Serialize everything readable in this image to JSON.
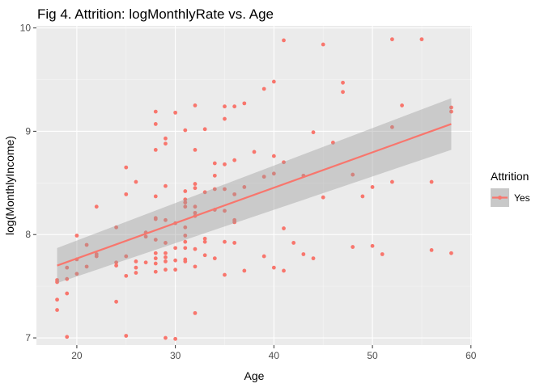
{
  "chart_data": {
    "type": "scatter",
    "title": "Fig 4. Attrition: logMonthlyRate vs. Age",
    "xlabel": "Age",
    "ylabel": "log(MonthlyIncome)",
    "xlim": [
      15.9,
      60.1
    ],
    "ylim": [
      6.93,
      10.02
    ],
    "xticks": [
      20,
      30,
      40,
      50,
      60
    ],
    "yticks": [
      7,
      8,
      9,
      10
    ],
    "grid": true,
    "legend": {
      "title": "Attrition",
      "position": "right",
      "entries": [
        "Yes"
      ]
    },
    "series": [
      {
        "name": "Yes",
        "color": "#F8766D",
        "points": [
          [
            18,
            7.56
          ],
          [
            18,
            7.54
          ],
          [
            18,
            7.37
          ],
          [
            18,
            7.27
          ],
          [
            19,
            7.68
          ],
          [
            19,
            7.43
          ],
          [
            19,
            7.01
          ],
          [
            19,
            7.57
          ],
          [
            20,
            7.99
          ],
          [
            20,
            7.76
          ],
          [
            20,
            7.62
          ],
          [
            21,
            7.9
          ],
          [
            21,
            7.69
          ],
          [
            22,
            8.27
          ],
          [
            22,
            7.81
          ],
          [
            22,
            7.79
          ],
          [
            24,
            8.07
          ],
          [
            24,
            7.73
          ],
          [
            24,
            7.7
          ],
          [
            24,
            7.35
          ],
          [
            25,
            8.65
          ],
          [
            25,
            8.39
          ],
          [
            25,
            7.79
          ],
          [
            25,
            7.6
          ],
          [
            25,
            7.02
          ],
          [
            26,
            8.51
          ],
          [
            26,
            7.74
          ],
          [
            26,
            7.68
          ],
          [
            26,
            7.63
          ],
          [
            27,
            8.02
          ],
          [
            27,
            7.98
          ],
          [
            27,
            7.73
          ],
          [
            28,
            9.19
          ],
          [
            28,
            9.07
          ],
          [
            28,
            8.82
          ],
          [
            28,
            8.37
          ],
          [
            28,
            8.16
          ],
          [
            28,
            8.15
          ],
          [
            28,
            7.95
          ],
          [
            28,
            7.82
          ],
          [
            28,
            7.77
          ],
          [
            28,
            7.72
          ],
          [
            28,
            7.64
          ],
          [
            29,
            8.93
          ],
          [
            29,
            8.88
          ],
          [
            29,
            8.47
          ],
          [
            29,
            8.14
          ],
          [
            29,
            7.92
          ],
          [
            29,
            7.82
          ],
          [
            29,
            7.78
          ],
          [
            29,
            7.74
          ],
          [
            29,
            7.66
          ],
          [
            29,
            7.0
          ],
          [
            30,
            9.18
          ],
          [
            30,
            8.11
          ],
          [
            30,
            7.87
          ],
          [
            30,
            7.75
          ],
          [
            30,
            7.66
          ],
          [
            30,
            6.99
          ],
          [
            31,
            9.01
          ],
          [
            31,
            8.42
          ],
          [
            31,
            8.34
          ],
          [
            31,
            8.31
          ],
          [
            31,
            8.27
          ],
          [
            31,
            8.07
          ],
          [
            31,
            7.99
          ],
          [
            31,
            7.93
          ],
          [
            31,
            7.87
          ],
          [
            31,
            7.76
          ],
          [
            31,
            7.74
          ],
          [
            32,
            9.25
          ],
          [
            32,
            8.82
          ],
          [
            32,
            8.49
          ],
          [
            32,
            8.45
          ],
          [
            32,
            8.27
          ],
          [
            32,
            8.21
          ],
          [
            32,
            8.18
          ],
          [
            32,
            7.86
          ],
          [
            32,
            7.69
          ],
          [
            32,
            7.24
          ],
          [
            33,
            9.02
          ],
          [
            33,
            8.41
          ],
          [
            33,
            7.96
          ],
          [
            33,
            7.93
          ],
          [
            33,
            7.8
          ],
          [
            34,
            8.69
          ],
          [
            34,
            8.57
          ],
          [
            34,
            8.44
          ],
          [
            34,
            8.24
          ],
          [
            34,
            7.77
          ],
          [
            35,
            9.24
          ],
          [
            35,
            9.12
          ],
          [
            35,
            8.68
          ],
          [
            35,
            8.44
          ],
          [
            35,
            8.23
          ],
          [
            35,
            7.93
          ],
          [
            35,
            7.61
          ],
          [
            36,
            9.24
          ],
          [
            36,
            8.72
          ],
          [
            36,
            8.39
          ],
          [
            36,
            8.14
          ],
          [
            36,
            8.12
          ],
          [
            36,
            7.92
          ],
          [
            37,
            9.27
          ],
          [
            37,
            8.46
          ],
          [
            37,
            7.65
          ],
          [
            38,
            8.8
          ],
          [
            39,
            9.41
          ],
          [
            39,
            8.56
          ],
          [
            39,
            7.79
          ],
          [
            40,
            9.48
          ],
          [
            40,
            8.76
          ],
          [
            40,
            8.59
          ],
          [
            40,
            7.68
          ],
          [
            41,
            9.88
          ],
          [
            41,
            8.7
          ],
          [
            41,
            8.06
          ],
          [
            41,
            7.65
          ],
          [
            42,
            7.92
          ],
          [
            43,
            8.57
          ],
          [
            43,
            7.81
          ],
          [
            44,
            8.99
          ],
          [
            44,
            7.77
          ],
          [
            45,
            9.84
          ],
          [
            45,
            8.36
          ],
          [
            46,
            8.89
          ],
          [
            47,
            9.47
          ],
          [
            47,
            9.38
          ],
          [
            48,
            8.58
          ],
          [
            48,
            7.88
          ],
          [
            49,
            8.37
          ],
          [
            50,
            8.46
          ],
          [
            50,
            7.89
          ],
          [
            51,
            7.81
          ],
          [
            52,
            9.89
          ],
          [
            52,
            9.04
          ],
          [
            52,
            8.51
          ],
          [
            53,
            9.25
          ],
          [
            55,
            9.89
          ],
          [
            56,
            8.51
          ],
          [
            56,
            7.85
          ],
          [
            58,
            9.23
          ],
          [
            58,
            9.19
          ],
          [
            58,
            7.82
          ]
        ]
      }
    ],
    "fit": {
      "method": "linear",
      "color": "#F8766D",
      "ribbon_color": "#999999",
      "x": [
        18,
        58
      ],
      "y": [
        7.7,
        9.07
      ],
      "lower": [
        7.53,
        8.82
      ],
      "upper": [
        7.87,
        9.32
      ]
    },
    "colors": {
      "panel_bg": "#EBEBEB",
      "grid_major": "#FFFFFF",
      "axis_text": "#4D4D4D",
      "title_text": "#000000"
    }
  }
}
